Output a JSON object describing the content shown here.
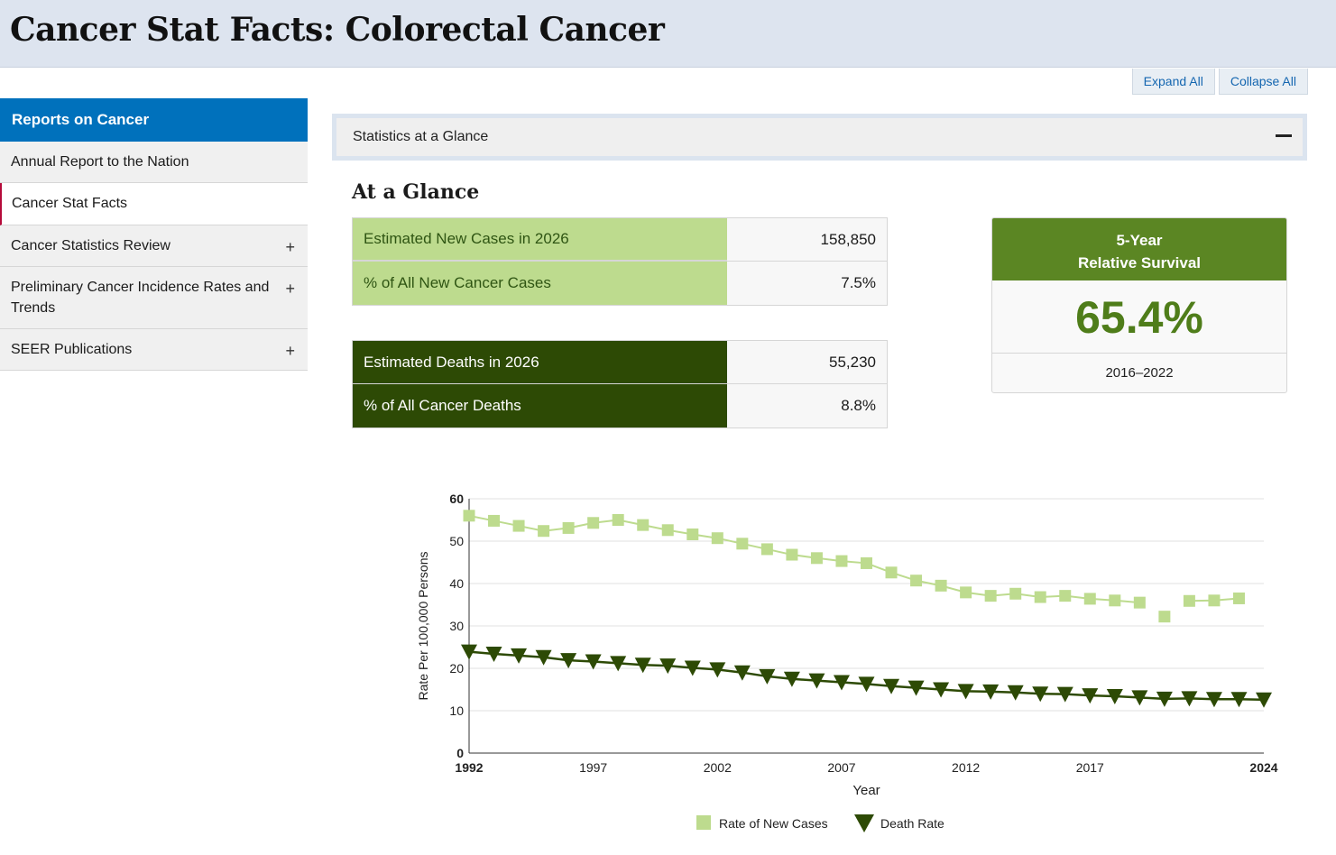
{
  "header": {
    "title": "Cancer Stat Facts: Colorectal Cancer"
  },
  "controls": {
    "expand_all": "Expand All",
    "collapse_all": "Collapse All"
  },
  "sidebar": {
    "title": "Reports on Cancer",
    "items": [
      {
        "label": "Annual Report to the Nation",
        "expandable": false
      },
      {
        "label": "Cancer Stat Facts",
        "expandable": false,
        "active": true
      },
      {
        "label": "Cancer Statistics Review",
        "expandable": true
      },
      {
        "label": "Preliminary Cancer Incidence Rates and Trends",
        "expandable": true
      },
      {
        "label": "SEER Publications",
        "expandable": true
      }
    ],
    "expand_icon": "+"
  },
  "accordion": {
    "label": "Statistics at a Glance",
    "icon": "minus-icon"
  },
  "glance": {
    "title": "At a Glance",
    "new_cases": [
      {
        "label": "Estimated New Cases in 2026",
        "value": "158,850"
      },
      {
        "label": "% of All New Cancer Cases",
        "value": "7.5%"
      }
    ],
    "deaths": [
      {
        "label": "Estimated Deaths in 2026",
        "value": "55,230"
      },
      {
        "label": "% of All Cancer Deaths",
        "value": "8.8%"
      }
    ],
    "survival": {
      "heading_line1": "5-Year",
      "heading_line2": "Relative Survival",
      "value": "65.4%",
      "range": "2016–2022"
    }
  },
  "colors": {
    "accent_blue": "#0071bc",
    "new_cases_green": "#bddb8e",
    "death_dark_green": "#2d4a05",
    "survival_green": "#5b8623"
  },
  "chart_data": {
    "type": "line",
    "xlabel": "Year",
    "ylabel": "Rate Per 100,000 Persons",
    "xlim": [
      1992,
      2024
    ],
    "ylim": [
      0,
      60
    ],
    "xticks": [
      "1992",
      "1997",
      "2002",
      "2007",
      "2012",
      "2017",
      "2024"
    ],
    "yticks": [
      "0",
      "10",
      "20",
      "30",
      "40",
      "50",
      "60"
    ],
    "grid": true,
    "legend_position": "bottom",
    "series": [
      {
        "name": "Rate of New Cases",
        "marker": "square",
        "color": "#bddb8e",
        "x": [
          1992,
          1993,
          1994,
          1995,
          1996,
          1997,
          1998,
          1999,
          2000,
          2001,
          2002,
          2003,
          2004,
          2005,
          2006,
          2007,
          2008,
          2009,
          2010,
          2011,
          2012,
          2013,
          2014,
          2015,
          2016,
          2017,
          2018,
          2019,
          2020,
          2021,
          2022,
          2023
        ],
        "values": [
          56.0,
          54.8,
          53.6,
          52.4,
          53.1,
          54.3,
          55.0,
          53.8,
          52.6,
          51.6,
          50.7,
          49.4,
          48.1,
          46.8,
          46.0,
          45.3,
          44.8,
          42.6,
          40.7,
          39.5,
          37.9,
          37.1,
          37.6,
          36.8,
          37.1,
          36.4,
          36.0,
          35.5,
          32.2,
          35.9,
          36.0,
          36.5
        ],
        "fit_breaks": [
          2020
        ]
      },
      {
        "name": "Death Rate",
        "marker": "triangle-down",
        "color": "#2d4a05",
        "x": [
          1992,
          1993,
          1994,
          1995,
          1996,
          1997,
          1998,
          1999,
          2000,
          2001,
          2002,
          2003,
          2004,
          2005,
          2006,
          2007,
          2008,
          2009,
          2010,
          2011,
          2012,
          2013,
          2014,
          2015,
          2016,
          2017,
          2018,
          2019,
          2020,
          2021,
          2022,
          2023,
          2024
        ],
        "values": [
          23.9,
          23.4,
          23.0,
          22.6,
          21.9,
          21.6,
          21.2,
          20.8,
          20.6,
          20.1,
          19.7,
          19.0,
          18.1,
          17.5,
          17.1,
          16.7,
          16.3,
          15.8,
          15.4,
          15.0,
          14.6,
          14.5,
          14.3,
          14.0,
          13.9,
          13.6,
          13.4,
          13.1,
          12.8,
          12.9,
          12.7,
          12.7,
          12.6
        ]
      }
    ]
  }
}
